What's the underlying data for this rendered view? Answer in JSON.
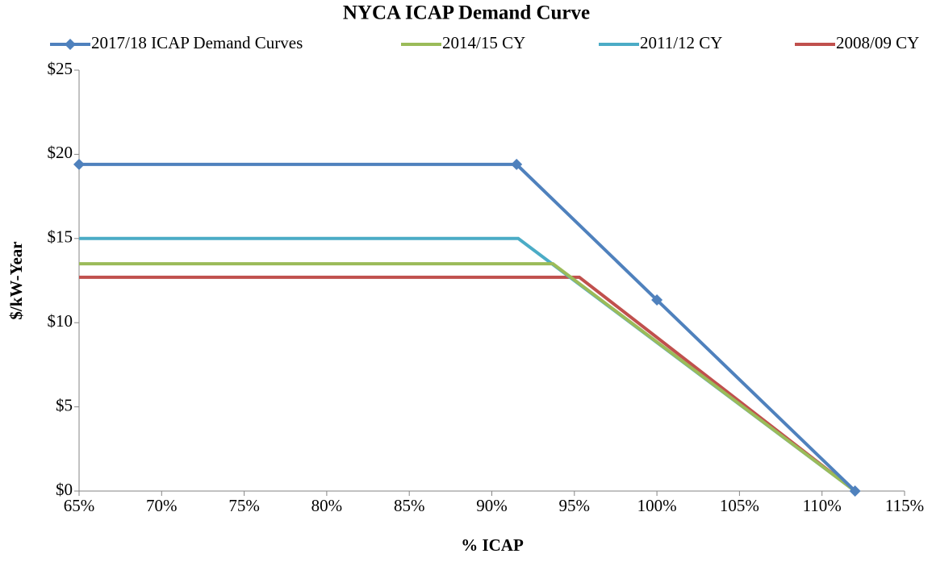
{
  "chart_data": {
    "type": "line",
    "title": "NYCA ICAP Demand Curve",
    "x_label": "% ICAP",
    "y_label": "$/kW-Year",
    "xlim": [
      65,
      115
    ],
    "xticks": [
      {
        "value": 65,
        "label": "65%"
      },
      {
        "value": 70,
        "label": "70%"
      },
      {
        "value": 75,
        "label": "75%"
      },
      {
        "value": 80,
        "label": "80%"
      },
      {
        "value": 85,
        "label": "85%"
      },
      {
        "value": 90,
        "label": "90%"
      },
      {
        "value": 95,
        "label": "95%"
      },
      {
        "value": 100,
        "label": "100%"
      },
      {
        "value": 105,
        "label": "105%"
      },
      {
        "value": 110,
        "label": "110%"
      },
      {
        "value": 115,
        "label": "115%"
      }
    ],
    "ylim": [
      0,
      25
    ],
    "yticks": [
      {
        "value": 0,
        "label": "$0"
      },
      {
        "value": 5,
        "label": "$5"
      },
      {
        "value": 10,
        "label": "$10"
      },
      {
        "value": 15,
        "label": "$15"
      },
      {
        "value": 20,
        "label": "$20"
      },
      {
        "value": 25,
        "label": "$25"
      }
    ],
    "grid": false,
    "legend": "top",
    "series": [
      {
        "name": "2017/18 ICAP Demand Curves",
        "color": "#4f81bd",
        "marker": "diamond",
        "x": [
          65,
          91.5,
          100,
          112
        ],
        "values": [
          19.4,
          19.4,
          11.35,
          0
        ]
      },
      {
        "name": "2014/15 CY",
        "color": "#9bbb59",
        "x": [
          65,
          93.7,
          112
        ],
        "values": [
          13.5,
          13.5,
          0
        ]
      },
      {
        "name": "2011/12 CY",
        "color": "#4bacc6",
        "x": [
          65,
          91.6,
          112
        ],
        "values": [
          15.0,
          15.0,
          0
        ]
      },
      {
        "name": "2008/09 CY",
        "color": "#c0504d",
        "x": [
          65,
          95.3,
          112
        ],
        "values": [
          12.7,
          12.7,
          0
        ]
      }
    ]
  }
}
